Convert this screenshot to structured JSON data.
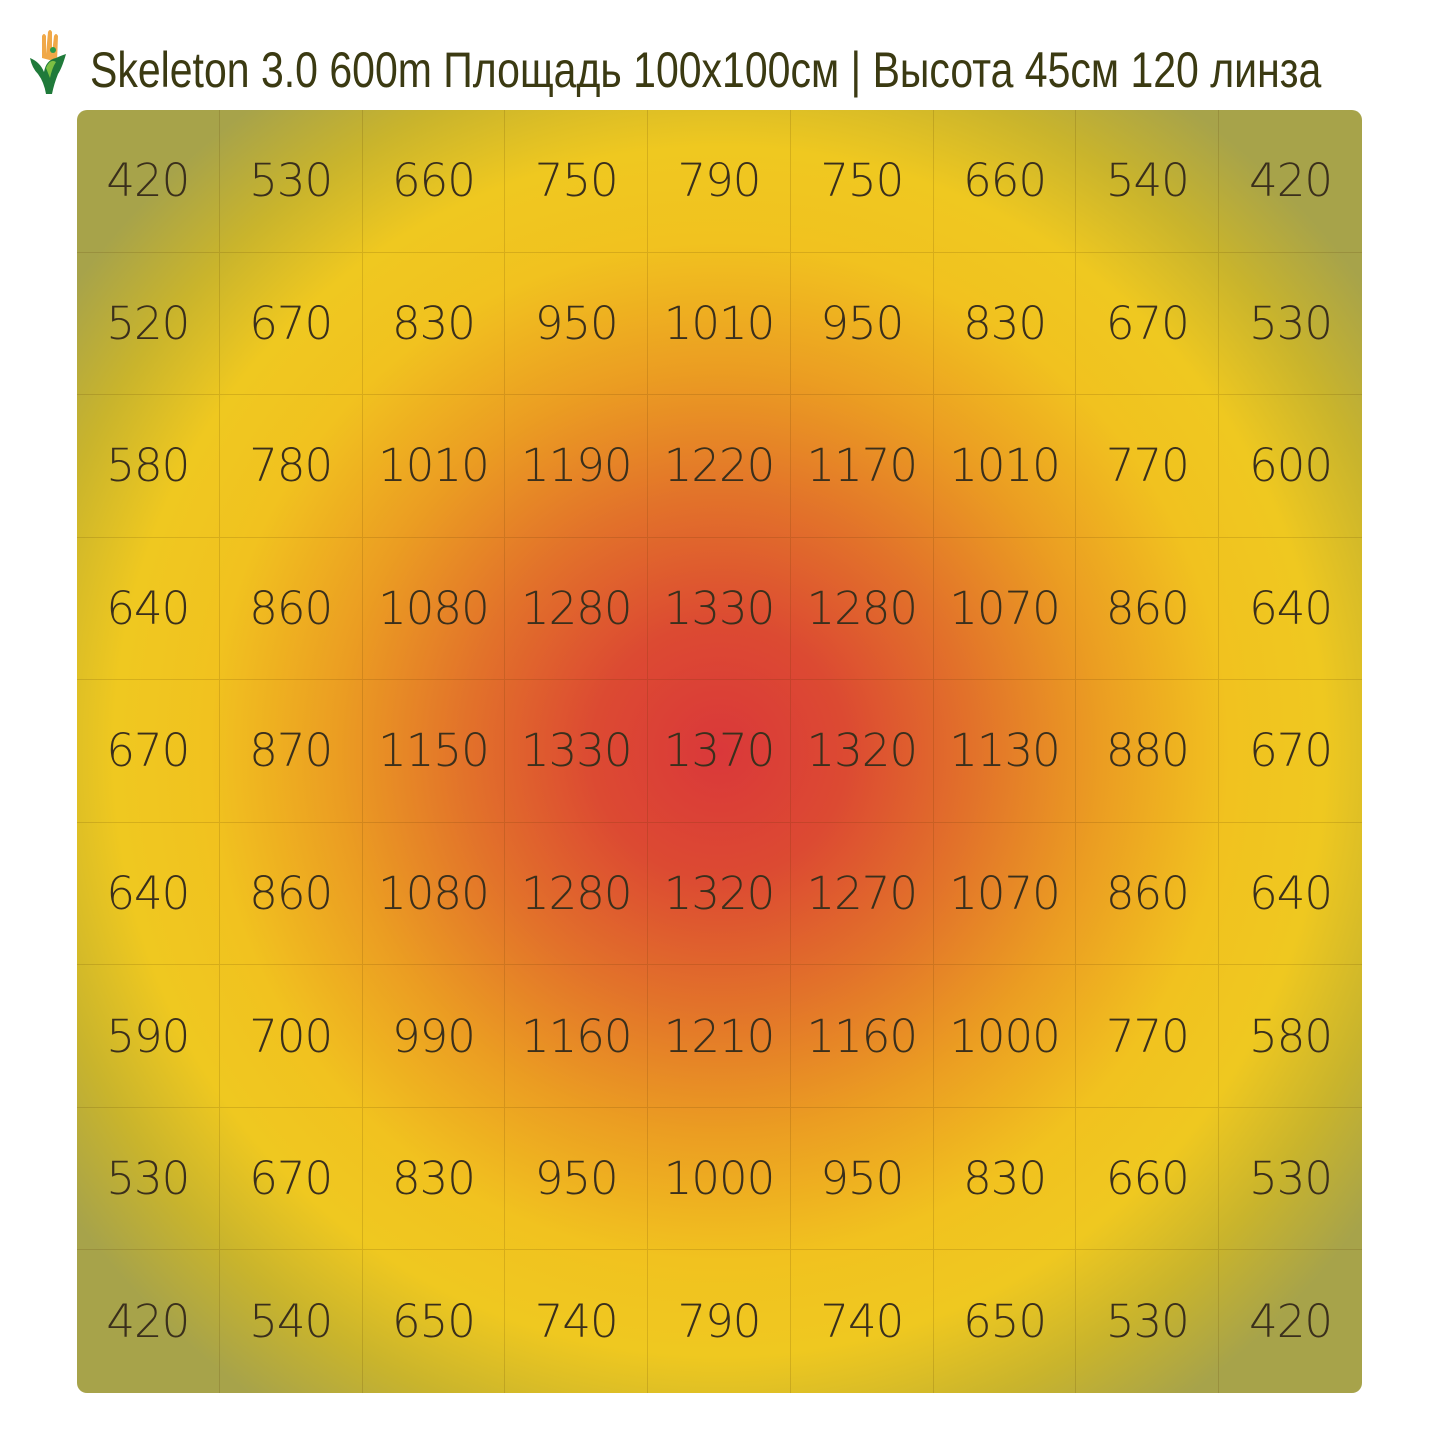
{
  "title": "Skeleton 3.0 600m Площадь 100x100см | Высота 45см 120 линза",
  "logo": {
    "icon": "hand-leaf-logo",
    "colors": [
      "#1f7a3a",
      "#f0a040",
      "#7cc043"
    ]
  },
  "chart_data": {
    "type": "heatmap",
    "title": "Skeleton 3.0 600m Площадь 100x100см | Высота 45см 120 линза",
    "rows": 9,
    "cols": 9,
    "values": [
      [
        420,
        530,
        660,
        750,
        790,
        750,
        660,
        540,
        420
      ],
      [
        520,
        670,
        830,
        950,
        1010,
        950,
        830,
        670,
        530
      ],
      [
        580,
        780,
        1010,
        1190,
        1220,
        1170,
        1010,
        770,
        600
      ],
      [
        640,
        860,
        1080,
        1280,
        1330,
        1280,
        1070,
        860,
        640
      ],
      [
        670,
        870,
        1150,
        1330,
        1370,
        1320,
        1130,
        880,
        670
      ],
      [
        640,
        860,
        1080,
        1280,
        1320,
        1270,
        1070,
        860,
        640
      ],
      [
        590,
        700,
        990,
        1160,
        1210,
        1160,
        1000,
        770,
        580
      ],
      [
        530,
        670,
        830,
        950,
        1000,
        950,
        830,
        660,
        530
      ],
      [
        420,
        540,
        650,
        740,
        790,
        740,
        650,
        530,
        420
      ]
    ],
    "colorscale": [
      "#a7a34a",
      "#f1c21f",
      "#eb9d22",
      "#e2722a",
      "#da383a"
    ],
    "grid": true
  }
}
